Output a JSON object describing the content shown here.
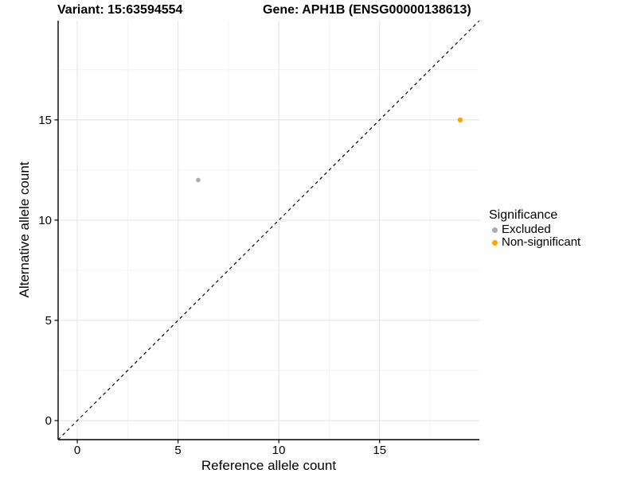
{
  "chart_data": {
    "type": "scatter",
    "title_left": "Variant: 15:63594554",
    "title_right": "Gene: APH1B (ENSG00000138613)",
    "xlabel": "Reference allele count",
    "ylabel": "Alternative allele count",
    "xlim": [
      -0.95,
      19.95
    ],
    "ylim": [
      -0.95,
      19.95
    ],
    "xticks": [
      0,
      5,
      10,
      15
    ],
    "yticks": [
      0,
      5,
      10,
      15
    ],
    "minor_tick_step": 2.5,
    "grid": "major+minor",
    "identity_line": {
      "slope": 1,
      "intercept": 0,
      "style": "dashed",
      "color": "#000000"
    },
    "series": [
      {
        "name": "Excluded",
        "color": "#ACACAC",
        "point_radius": 2.8,
        "points": [
          {
            "x": 6,
            "y": 12
          }
        ]
      },
      {
        "name": "Non-significant",
        "color": "#FFA500",
        "point_radius": 3.2,
        "points": [
          {
            "x": 19,
            "y": 15
          }
        ]
      }
    ],
    "legend": {
      "title": "Significance",
      "position": "right"
    }
  },
  "colors": {
    "background": "#FFFFFF",
    "axis_line": "#000000",
    "tick_text": "#000000",
    "grid_major": "#E5E5E5",
    "grid_minor": "#F2F2F2"
  }
}
